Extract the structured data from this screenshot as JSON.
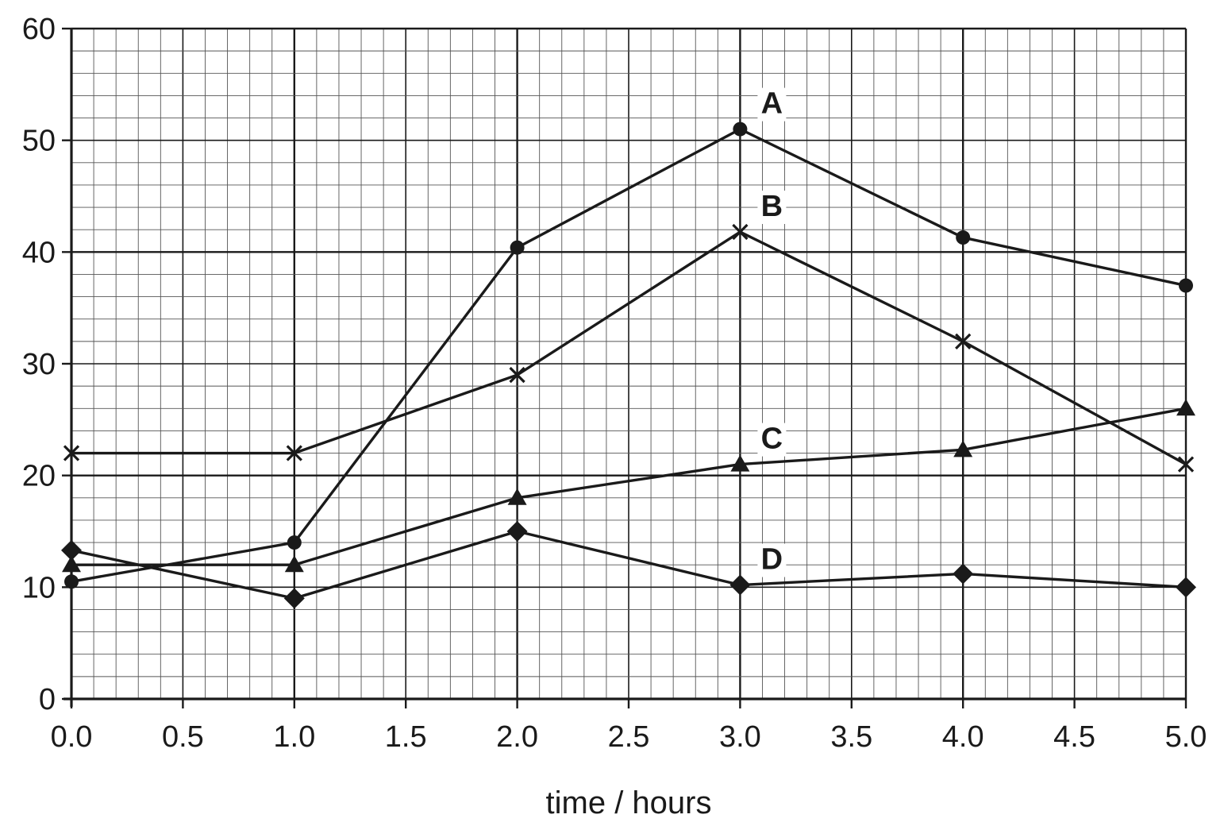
{
  "chart_data": {
    "type": "line",
    "title": "",
    "xlabel": "time / hours",
    "ylabel": "",
    "xlim": [
      0,
      5
    ],
    "ylim": [
      0,
      60
    ],
    "x_ticks": [
      "0.0",
      "0.5",
      "1.0",
      "1.5",
      "2.0",
      "2.5",
      "3.0",
      "3.5",
      "4.0",
      "4.5",
      "5.0"
    ],
    "y_ticks": [
      "0",
      "10",
      "20",
      "30",
      "40",
      "50",
      "60"
    ],
    "grid": true,
    "colors": {
      "ink": "#1a1a1a",
      "grid_minor": "#555555",
      "grid_major": "#1a1a1a",
      "label_bg": "#ffffff"
    },
    "x": [
      0,
      1,
      2,
      3,
      4,
      5
    ],
    "series": [
      {
        "name": "A",
        "marker": "circle",
        "label_at": 3,
        "values": [
          10.5,
          14,
          40.4,
          51,
          41.3,
          37
        ]
      },
      {
        "name": "B",
        "marker": "cross",
        "label_at": 3,
        "values": [
          22,
          22,
          29,
          41.8,
          32,
          21
        ]
      },
      {
        "name": "C",
        "marker": "triangle",
        "label_at": 3,
        "values": [
          12,
          12,
          18,
          21,
          22.3,
          26
        ]
      },
      {
        "name": "D",
        "marker": "diamond",
        "label_at": 3,
        "values": [
          13.3,
          9,
          15,
          10.2,
          11.2,
          10
        ]
      }
    ]
  }
}
